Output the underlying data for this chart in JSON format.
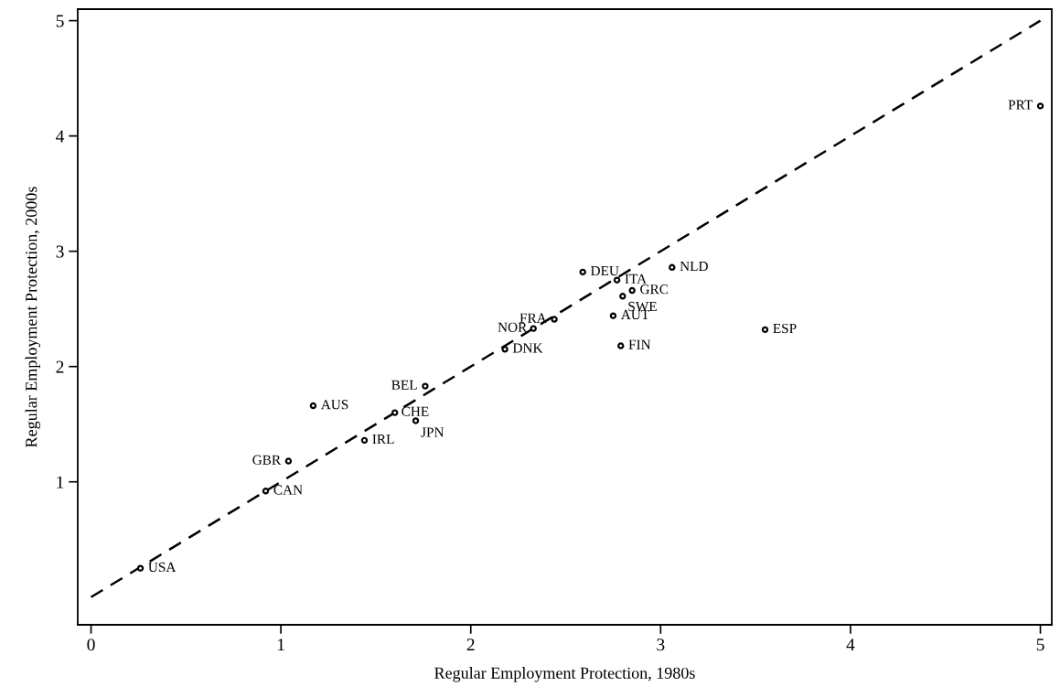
{
  "chart_data": {
    "type": "scatter",
    "xlabel": "Regular Employment Protection, 1980s",
    "ylabel": "Regular Employment Protection, 2000s",
    "xlim": [
      -0.07,
      5.06
    ],
    "ylim": [
      -0.24,
      5.1
    ],
    "xticks": [
      0,
      1,
      2,
      3,
      4,
      5
    ],
    "yticks": [
      1,
      2,
      3,
      4,
      5
    ],
    "grid": false,
    "series": [
      {
        "color": "#000000",
        "marker": "circle",
        "x": [
          0.26,
          0.92,
          1.04,
          1.17,
          1.44,
          1.6,
          1.71,
          1.76,
          2.18,
          2.33,
          2.44,
          2.59,
          2.77,
          2.85,
          2.8,
          2.75,
          2.79,
          3.06,
          3.55,
          5.0
        ],
        "values": [
          0.25,
          0.92,
          1.18,
          1.66,
          1.36,
          1.6,
          1.53,
          1.83,
          2.15,
          2.33,
          2.41,
          2.82,
          2.75,
          2.66,
          2.61,
          2.44,
          2.18,
          2.86,
          2.32,
          4.26
        ]
      },
      {
        "type": "line",
        "color": "#000000",
        "line_style": "dashed",
        "marker": "none",
        "x": [
          0,
          5
        ],
        "values": [
          0,
          5
        ]
      }
    ],
    "annotations": [
      {
        "text": "USA",
        "x": 0.26,
        "y": 0.25
      },
      {
        "text": "CAN",
        "x": 0.92,
        "y": 0.92
      },
      {
        "text": "GBR",
        "x": 1.04,
        "y": 1.18
      },
      {
        "text": "AUS",
        "x": 1.17,
        "y": 1.66
      },
      {
        "text": "IRL",
        "x": 1.44,
        "y": 1.36
      },
      {
        "text": "CHE",
        "x": 1.6,
        "y": 1.6
      },
      {
        "text": "JPN",
        "x": 1.71,
        "y": 1.53
      },
      {
        "text": "BEL",
        "x": 1.76,
        "y": 1.83
      },
      {
        "text": "DNK",
        "x": 2.18,
        "y": 2.15
      },
      {
        "text": "NOR",
        "x": 2.33,
        "y": 2.33
      },
      {
        "text": "FRA",
        "x": 2.44,
        "y": 2.41
      },
      {
        "text": "DEU",
        "x": 2.59,
        "y": 2.82
      },
      {
        "text": "ITA",
        "x": 2.77,
        "y": 2.75
      },
      {
        "text": "GRC",
        "x": 2.85,
        "y": 2.66
      },
      {
        "text": "SWE",
        "x": 2.8,
        "y": 2.61
      },
      {
        "text": "AUT",
        "x": 2.75,
        "y": 2.44
      },
      {
        "text": "FIN",
        "x": 2.79,
        "y": 2.18
      },
      {
        "text": "NLD",
        "x": 3.06,
        "y": 2.86
      },
      {
        "text": "ESP",
        "x": 3.55,
        "y": 2.32
      },
      {
        "text": "PRT",
        "x": 5.0,
        "y": 4.26
      }
    ]
  }
}
